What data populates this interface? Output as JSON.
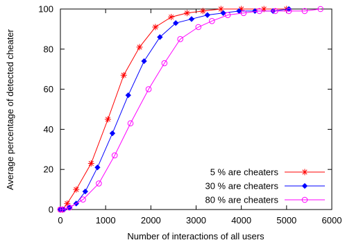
{
  "chart_data": {
    "type": "line",
    "xlabel": "Number of interactions of all users",
    "ylabel": "Average percentage of detected cheater",
    "xlim": [
      0,
      6000
    ],
    "ylim": [
      0,
      100
    ],
    "x_ticks": [
      "0",
      "1000",
      "2000",
      "3000",
      "4000",
      "5000",
      "6000"
    ],
    "y_ticks": [
      "0",
      "20",
      "40",
      "60",
      "80",
      "100"
    ],
    "grid": false,
    "legend_position": "bottom-right",
    "series": [
      {
        "name": "5 % are cheaters",
        "color": "#ff0000",
        "marker": "asterisk",
        "x": [
          0,
          50,
          150,
          350,
          680,
          1050,
          1400,
          1750,
          2100,
          2450,
          2800,
          3150,
          3550,
          4000,
          4500,
          5000
        ],
        "y": [
          0,
          0,
          3,
          10,
          23,
          45,
          67,
          81,
          91,
          96,
          98,
          99,
          100,
          100,
          100,
          100
        ]
      },
      {
        "name": "30 % are cheaters",
        "color": "#0000ff",
        "marker": "diamond",
        "x": [
          0,
          80,
          200,
          350,
          550,
          820,
          1150,
          1500,
          1850,
          2200,
          2550,
          2900,
          3250,
          3600,
          3950,
          4300,
          4700,
          5050
        ],
        "y": [
          0,
          0,
          1,
          3,
          9,
          21,
          38,
          57,
          74,
          86,
          93,
          95,
          97,
          98,
          99,
          99,
          99,
          100
        ]
      },
      {
        "name": "80 % are cheaters",
        "color": "#ff00ff",
        "marker": "circle",
        "x": [
          0,
          50,
          200,
          500,
          850,
          1200,
          1550,
          1950,
          2300,
          2650,
          3050,
          3350,
          3700,
          4050,
          4400,
          4750,
          5050,
          5400,
          5750
        ],
        "y": [
          0,
          0,
          1,
          5,
          13,
          27,
          43,
          60,
          73,
          85,
          91,
          94,
          97,
          98,
          99,
          99,
          99,
          99,
          100
        ]
      }
    ]
  }
}
